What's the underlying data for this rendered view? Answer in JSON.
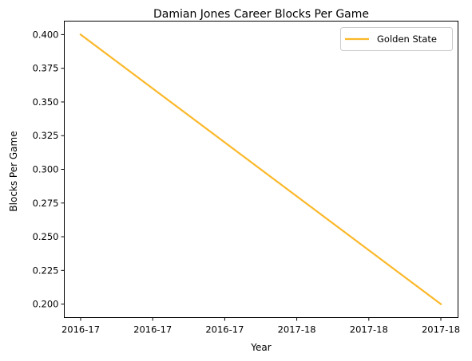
{
  "chart_data": {
    "type": "line",
    "title": "Damian Jones  Career Blocks Per Game",
    "xlabel": "Year",
    "ylabel": "Blocks Per Game",
    "x_tick_labels": [
      "2016-17",
      "2016-17",
      "2016-17",
      "2017-18",
      "2017-18",
      "2017-18"
    ],
    "y_ticks": [
      "0.200",
      "0.225",
      "0.250",
      "0.275",
      "0.300",
      "0.325",
      "0.350",
      "0.375",
      "0.400"
    ],
    "ylim": [
      0.19,
      0.41
    ],
    "series": [
      {
        "name": "Golden State",
        "color": "#fbb829",
        "x": [
          "2016-17",
          "2017-18"
        ],
        "values": [
          0.4,
          0.2
        ]
      }
    ],
    "legend": "top-right",
    "grid": false
  }
}
